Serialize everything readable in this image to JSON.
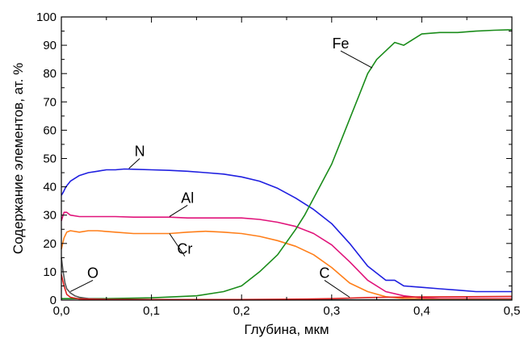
{
  "chart_data": {
    "type": "line",
    "xlabel": "Глубина, мкм",
    "ylabel": "Содержание элементов, ат. %",
    "xlim": [
      0,
      0.5
    ],
    "ylim": [
      0,
      100
    ],
    "xticks": [
      0,
      0.1,
      0.2,
      0.3,
      0.4,
      0.5
    ],
    "xtick_labels": [
      "0,0",
      "0,1",
      "0,2",
      "0,3",
      "0,4",
      "0,5"
    ],
    "yticks": [
      0,
      10,
      20,
      30,
      40,
      50,
      60,
      70,
      80,
      90,
      100
    ],
    "ytick_labels": [
      "0",
      "10",
      "20",
      "30",
      "40",
      "50",
      "60",
      "70",
      "80",
      "90",
      "100"
    ],
    "grid": false,
    "series": [
      {
        "name": "N",
        "color": "#1f1fe0",
        "x": [
          0,
          0.002,
          0.005,
          0.01,
          0.02,
          0.03,
          0.04,
          0.05,
          0.06,
          0.07,
          0.08,
          0.1,
          0.12,
          0.14,
          0.16,
          0.18,
          0.2,
          0.22,
          0.24,
          0.26,
          0.28,
          0.3,
          0.32,
          0.34,
          0.36,
          0.37,
          0.38,
          0.4,
          0.42,
          0.44,
          0.46,
          0.48,
          0.5
        ],
        "y": [
          37,
          38,
          40,
          42,
          44,
          45,
          45.5,
          46,
          46,
          46.3,
          46.2,
          46,
          45.8,
          45.5,
          45,
          44.5,
          43.5,
          42,
          39.5,
          36,
          32,
          27,
          20,
          12,
          7,
          7,
          5,
          4.5,
          4,
          3.5,
          3,
          3,
          3
        ]
      },
      {
        "name": "Al",
        "color": "#e0137a",
        "x": [
          0,
          0.003,
          0.006,
          0.01,
          0.02,
          0.04,
          0.06,
          0.08,
          0.1,
          0.12,
          0.14,
          0.16,
          0.18,
          0.2,
          0.22,
          0.24,
          0.26,
          0.28,
          0.3,
          0.32,
          0.34,
          0.36,
          0.38,
          0.4,
          0.42,
          0.44,
          0.46,
          0.48,
          0.5
        ],
        "y": [
          28,
          31,
          31,
          30,
          29.5,
          29.5,
          29.5,
          29.3,
          29.3,
          29.3,
          29,
          29,
          29,
          29,
          28.5,
          27.5,
          26,
          23.5,
          19.5,
          13.5,
          7,
          3,
          1.5,
          0.8,
          0.5,
          0.5,
          0.5,
          0.5,
          0.5
        ]
      },
      {
        "name": "Cr",
        "color": "#ff7f1a",
        "x": [
          0,
          0.003,
          0.006,
          0.01,
          0.02,
          0.03,
          0.04,
          0.06,
          0.08,
          0.1,
          0.12,
          0.14,
          0.16,
          0.18,
          0.2,
          0.22,
          0.24,
          0.26,
          0.28,
          0.3,
          0.32,
          0.34,
          0.36,
          0.38,
          0.4,
          0.42,
          0.44,
          0.46,
          0.48,
          0.5
        ],
        "y": [
          18,
          22,
          24,
          24.5,
          24,
          24.5,
          24.5,
          24,
          23.5,
          23.5,
          23.5,
          24,
          24.3,
          24,
          23.5,
          22.5,
          21,
          19,
          16,
          11.5,
          6,
          3,
          1.2,
          0.6,
          0.4,
          0.3,
          0.3,
          0.3,
          0.3,
          0.3
        ]
      },
      {
        "name": "Fe",
        "color": "#1a8c1a",
        "x": [
          0,
          0.02,
          0.05,
          0.1,
          0.15,
          0.18,
          0.2,
          0.22,
          0.24,
          0.26,
          0.27,
          0.28,
          0.29,
          0.3,
          0.31,
          0.32,
          0.33,
          0.34,
          0.35,
          0.36,
          0.37,
          0.38,
          0.39,
          0.4,
          0.42,
          0.44,
          0.46,
          0.48,
          0.5
        ],
        "y": [
          0.5,
          0.5,
          0.5,
          0.8,
          1.5,
          3,
          5,
          10,
          16,
          25,
          30,
          36,
          42,
          48,
          56,
          64,
          72,
          80,
          85,
          88,
          91,
          90,
          92,
          94,
          94.5,
          94.5,
          95,
          95.3,
          95.5
        ]
      },
      {
        "name": "O",
        "color": "#555555",
        "x": [
          0,
          0.002,
          0.004,
          0.006,
          0.01,
          0.015,
          0.02,
          0.03,
          0.05,
          0.1,
          0.2,
          0.3,
          0.4,
          0.5
        ],
        "y": [
          15,
          10,
          6,
          4,
          2.5,
          1.5,
          1,
          0.5,
          0.3,
          0.2,
          0.1,
          0.1,
          0.1,
          0.1
        ]
      },
      {
        "name": "C",
        "color": "#e02020",
        "x": [
          0,
          0.003,
          0.006,
          0.01,
          0.02,
          0.05,
          0.1,
          0.2,
          0.25,
          0.28,
          0.3,
          0.32,
          0.34,
          0.36,
          0.4,
          0.45,
          0.5
        ],
        "y": [
          9,
          5,
          2,
          1,
          0.4,
          0.2,
          0.2,
          0.2,
          0.3,
          0.4,
          0.5,
          0.7,
          0.9,
          1.0,
          1.1,
          1.2,
          1.3
        ]
      }
    ],
    "annotations": [
      {
        "text": "N",
        "x": 0.087,
        "y": 50,
        "leader_x": 0.075,
        "leader_y": 46.5
      },
      {
        "text": "Al",
        "x": 0.14,
        "y": 33.5,
        "leader_x": 0.12,
        "leader_y": 29.5
      },
      {
        "text": "Cr",
        "x": 0.137,
        "y": 15.5,
        "leader_x": 0.12,
        "leader_y": 23.5
      },
      {
        "text": "Fe",
        "x": 0.31,
        "y": 88,
        "leader_x": 0.345,
        "leader_y": 82
      },
      {
        "text": "O",
        "x": 0.035,
        "y": 7,
        "leader_x": 0.01,
        "leader_y": 3
      },
      {
        "text": "C",
        "x": 0.292,
        "y": 7,
        "leader_x": 0.32,
        "leader_y": 1
      }
    ]
  }
}
